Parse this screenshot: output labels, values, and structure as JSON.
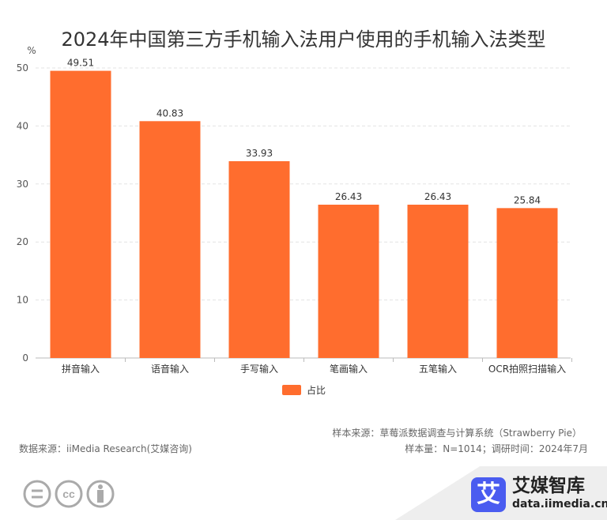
{
  "chart_data": {
    "type": "bar",
    "title": "2024年中国第三方手机输入法用户使用的手机输入法类型",
    "ylabel": "%",
    "categories": [
      "拼音输入",
      "语音输入",
      "手写输入",
      "笔画输入",
      "五笔输入",
      "OCR拍照扫描输入"
    ],
    "series": [
      {
        "name": "占比",
        "values": [
          49.51,
          40.83,
          33.93,
          26.43,
          26.43,
          25.84
        ]
      }
    ],
    "data_labels": [
      "49.51",
      "40.83",
      "33.93",
      "26.43",
      "26.43",
      "25.84"
    ],
    "yticks": [
      0,
      10,
      20,
      30,
      40,
      50
    ],
    "ylim": [
      0,
      50
    ],
    "grid": true,
    "legend": "bottom",
    "color": "#FF6D2E"
  },
  "footer": {
    "sample_source": "样本来源：草莓派数据调查与计算系统（Strawberry Pie）",
    "sample_size": "样本量：N=1014；调研时间：2024年7月",
    "data_source": "数据来源：iiMedia Research(艾媒咨询)",
    "brand_name": "艾媒智库",
    "brand_url": "data.iimedia.cn",
    "brand_color": "#4a5cf0"
  }
}
